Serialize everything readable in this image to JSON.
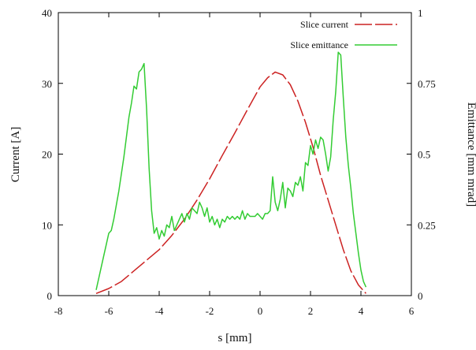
{
  "chart_data": {
    "type": "line",
    "title": "",
    "xlabel": "s [mm]",
    "ylabel": "Current [A]",
    "y2label": "Emittance [mm mrad]",
    "xlim": [
      -8,
      6
    ],
    "ylim": [
      0,
      40
    ],
    "y2lim": [
      0,
      1
    ],
    "xticks": [
      "-8",
      "-6",
      "-4",
      "-2",
      "0",
      "2",
      "4",
      "6"
    ],
    "yticks": [
      "0",
      "10",
      "20",
      "30",
      "40"
    ],
    "y2ticks": [
      "0",
      "0.25",
      "0.5",
      "0.75",
      "1"
    ],
    "grid": false,
    "legend_position": "top-right",
    "series": [
      {
        "name": "Slice current",
        "axis": "left",
        "color": "#cc2222",
        "dash": "long-dash",
        "x": [
          -6.5,
          -6.0,
          -5.5,
          -5.0,
          -4.5,
          -4.0,
          -3.5,
          -3.0,
          -2.5,
          -2.0,
          -1.5,
          -1.0,
          -0.5,
          0.0,
          0.3,
          0.6,
          0.9,
          1.2,
          1.5,
          1.8,
          2.1,
          2.4,
          2.7,
          3.0,
          3.3,
          3.6,
          3.9,
          4.2
        ],
        "values": [
          0.3,
          1.0,
          2.0,
          3.5,
          5.0,
          6.5,
          8.5,
          10.8,
          13.5,
          16.5,
          19.8,
          23.0,
          26.3,
          29.5,
          30.8,
          31.6,
          31.2,
          29.8,
          27.5,
          24.5,
          21.0,
          17.0,
          13.5,
          10.0,
          6.5,
          3.5,
          1.5,
          0.3
        ]
      },
      {
        "name": "Slice emittance",
        "axis": "right",
        "color": "#33cc33",
        "dash": "solid",
        "x": [
          -6.5,
          -6.4,
          -6.3,
          -6.2,
          -6.1,
          -6.0,
          -5.9,
          -5.8,
          -5.7,
          -5.6,
          -5.5,
          -5.4,
          -5.3,
          -5.2,
          -5.1,
          -5.0,
          -4.9,
          -4.8,
          -4.7,
          -4.6,
          -4.5,
          -4.4,
          -4.3,
          -4.2,
          -4.1,
          -4.0,
          -3.9,
          -3.8,
          -3.7,
          -3.6,
          -3.5,
          -3.4,
          -3.3,
          -3.2,
          -3.1,
          -3.0,
          -2.9,
          -2.8,
          -2.7,
          -2.6,
          -2.5,
          -2.4,
          -2.3,
          -2.2,
          -2.1,
          -2.0,
          -1.9,
          -1.8,
          -1.7,
          -1.6,
          -1.5,
          -1.4,
          -1.3,
          -1.2,
          -1.1,
          -1.0,
          -0.9,
          -0.8,
          -0.7,
          -0.6,
          -0.5,
          -0.4,
          -0.3,
          -0.2,
          -0.1,
          0.0,
          0.1,
          0.2,
          0.3,
          0.4,
          0.5,
          0.6,
          0.7,
          0.8,
          0.9,
          1.0,
          1.1,
          1.2,
          1.3,
          1.4,
          1.5,
          1.6,
          1.7,
          1.8,
          1.9,
          2.0,
          2.1,
          2.2,
          2.3,
          2.4,
          2.5,
          2.6,
          2.7,
          2.8,
          2.9,
          3.0,
          3.1,
          3.2,
          3.3,
          3.4,
          3.5,
          3.6,
          3.7,
          3.8,
          3.9,
          4.0,
          4.1,
          4.2
        ],
        "values": [
          0.02,
          0.06,
          0.1,
          0.14,
          0.18,
          0.22,
          0.23,
          0.27,
          0.32,
          0.37,
          0.43,
          0.49,
          0.56,
          0.63,
          0.68,
          0.74,
          0.73,
          0.79,
          0.8,
          0.82,
          0.66,
          0.45,
          0.3,
          0.22,
          0.24,
          0.2,
          0.23,
          0.21,
          0.25,
          0.24,
          0.28,
          0.23,
          0.25,
          0.27,
          0.29,
          0.26,
          0.29,
          0.27,
          0.31,
          0.3,
          0.29,
          0.33,
          0.31,
          0.28,
          0.31,
          0.26,
          0.28,
          0.25,
          0.27,
          0.24,
          0.27,
          0.26,
          0.28,
          0.27,
          0.28,
          0.27,
          0.28,
          0.27,
          0.3,
          0.27,
          0.29,
          0.28,
          0.28,
          0.28,
          0.29,
          0.28,
          0.27,
          0.29,
          0.29,
          0.3,
          0.42,
          0.33,
          0.3,
          0.34,
          0.4,
          0.31,
          0.38,
          0.37,
          0.35,
          0.4,
          0.39,
          0.42,
          0.37,
          0.47,
          0.46,
          0.53,
          0.5,
          0.55,
          0.52,
          0.56,
          0.55,
          0.5,
          0.44,
          0.49,
          0.62,
          0.72,
          0.86,
          0.85,
          0.7,
          0.56,
          0.46,
          0.38,
          0.29,
          0.22,
          0.15,
          0.09,
          0.05,
          0.03
        ]
      }
    ]
  }
}
